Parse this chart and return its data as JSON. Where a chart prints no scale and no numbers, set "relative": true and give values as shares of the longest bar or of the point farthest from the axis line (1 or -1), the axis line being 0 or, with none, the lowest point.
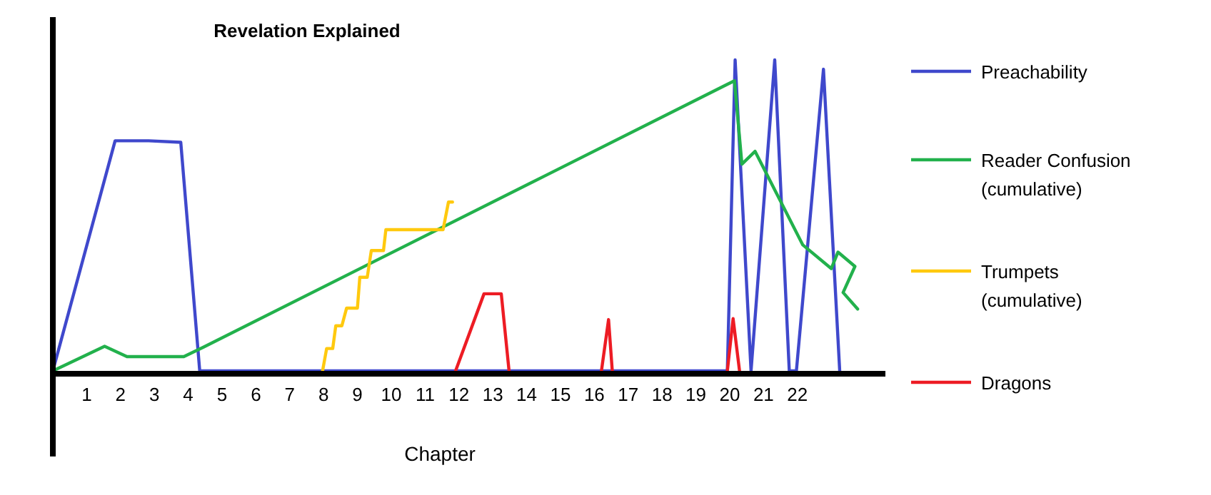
{
  "chart_data": {
    "type": "line",
    "title": "Revelation Explained",
    "xlabel": "Chapter",
    "relative": true,
    "xlim": [
      0,
      24.6
    ],
    "xticks": [
      1,
      2,
      3,
      4,
      5,
      6,
      7,
      8,
      9,
      10,
      11,
      12,
      13,
      14,
      15,
      16,
      17,
      18,
      19,
      20,
      21,
      22
    ],
    "legend": "right",
    "marker": "none",
    "line_style": "solid",
    "series": [
      {
        "name": "Preachability",
        "color": "#3f48cc",
        "x": [
          0,
          1.84,
          2.83,
          3.78,
          4.34,
          19.93,
          20.16,
          20.63,
          21.33,
          21.76,
          21.97,
          22.77,
          23.25
        ],
        "values": [
          0,
          0.74,
          0.74,
          0.735,
          0,
          0,
          1,
          0,
          1,
          0,
          0,
          0.97,
          0
        ]
      },
      {
        "name": "Reader Confusion (cumulative)",
        "color": "#22b14c",
        "x": [
          0,
          1.53,
          2.19,
          3.87,
          4.46,
          20.14,
          20.36,
          20.75,
          22.16,
          23.0,
          23.2,
          23.7,
          23.35,
          23.78
        ],
        "values": [
          0,
          0.079,
          0.046,
          0.046,
          0.077,
          0.933,
          0.665,
          0.706,
          0.405,
          0.329,
          0.382,
          0.336,
          0.252,
          0.199
        ]
      },
      {
        "name": "Trumpets (cumulative)",
        "color": "#ffc90e",
        "x": [
          7.97,
          8.09,
          8.27,
          8.36,
          8.54,
          8.68,
          9.0,
          9.07,
          9.29,
          9.41,
          9.77,
          9.84,
          11.53,
          11.69,
          11.81
        ],
        "values": [
          0,
          0.072,
          0.072,
          0.145,
          0.145,
          0.202,
          0.202,
          0.301,
          0.301,
          0.387,
          0.387,
          0.454,
          0.454,
          0.543,
          0.543
        ]
      },
      {
        "name": "Dragons",
        "color": "#ed1c24",
        "x": [
          11.9,
          12.74,
          13.25,
          13.48,
          14.8,
          16.21,
          16.42,
          16.53,
          18.2,
          19.93,
          20.1,
          20.29
        ],
        "values": [
          0,
          0.248,
          0.248,
          0,
          null,
          0,
          0.165,
          0,
          null,
          0,
          0.168,
          0
        ]
      }
    ]
  }
}
